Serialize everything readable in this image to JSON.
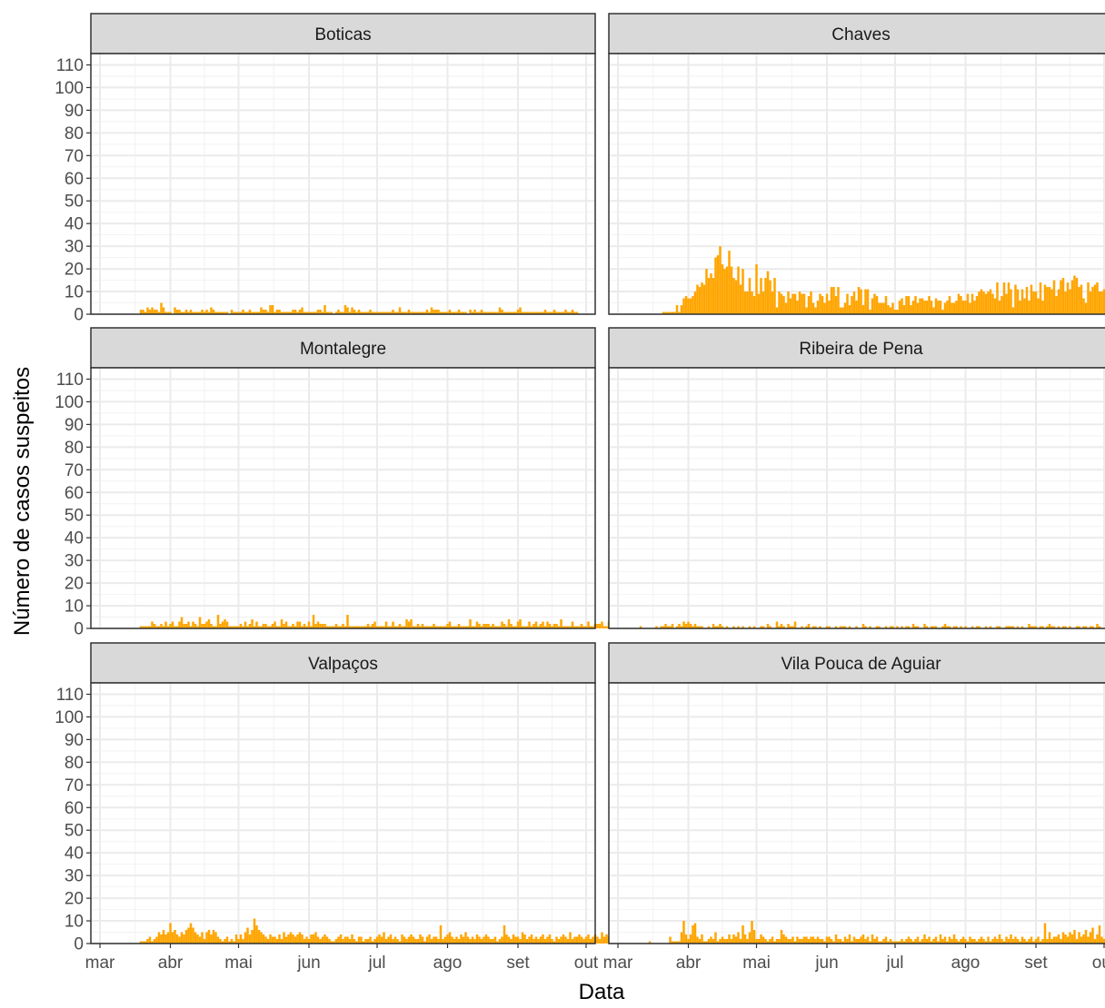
{
  "chart_data": {
    "type": "bar",
    "xlabel": "Data",
    "ylabel": "Número de casos suspeitos",
    "ylim": [
      0,
      115
    ],
    "yticks": [
      0,
      10,
      20,
      30,
      40,
      50,
      60,
      70,
      80,
      90,
      100,
      110
    ],
    "x_date_range": [
      "2020-03-01",
      "2020-10-01"
    ],
    "month_ticks": [
      {
        "label": "mar",
        "date": "2020-03-01"
      },
      {
        "label": "abr",
        "date": "2020-04-01"
      },
      {
        "label": "mai",
        "date": "2020-05-01"
      },
      {
        "label": "jun",
        "date": "2020-06-01"
      },
      {
        "label": "jul",
        "date": "2020-07-01"
      },
      {
        "label": "ago",
        "date": "2020-08-01"
      },
      {
        "label": "set",
        "date": "2020-09-01"
      },
      {
        "label": "out",
        "date": "2020-10-01"
      }
    ],
    "grid": true,
    "bar_color": "#FFA500",
    "panels": [
      {
        "name": "Boticas",
        "start_date": "2020-03-07",
        "values": [
          0,
          0,
          0,
          0,
          0,
          0,
          0,
          0,
          0,
          0,
          0,
          0,
          2,
          2,
          1,
          3,
          2,
          3,
          2,
          2,
          1,
          5,
          3,
          1,
          1,
          1,
          0,
          3,
          2,
          2,
          1,
          1,
          2,
          1,
          2,
          1,
          1,
          1,
          1,
          2,
          1,
          2,
          1,
          3,
          2,
          1,
          1,
          1,
          1,
          1,
          1,
          0,
          2,
          1,
          1,
          1,
          1,
          2,
          1,
          1,
          2,
          1,
          1,
          1,
          1,
          3,
          2,
          2,
          1,
          4,
          4,
          1,
          2,
          2,
          1,
          1,
          1,
          1,
          1,
          2,
          2,
          1,
          2,
          3,
          1,
          1,
          1,
          1,
          1,
          1,
          2,
          2,
          1,
          4,
          1,
          1,
          1,
          0,
          1,
          2,
          1,
          1,
          4,
          3,
          1,
          3,
          2,
          1,
          2,
          1,
          1,
          1,
          1,
          2,
          1,
          1,
          1,
          1,
          1,
          1,
          1,
          1,
          1,
          2,
          1,
          1,
          3,
          1,
          1,
          1,
          2,
          1,
          1,
          1,
          1,
          1,
          1,
          1,
          2,
          1,
          3,
          2,
          2,
          2,
          1,
          1,
          1,
          1,
          2,
          1,
          1,
          1,
          2,
          1,
          1,
          1,
          0,
          2,
          1,
          2,
          1,
          1,
          2,
          1,
          1,
          1,
          1,
          1,
          1,
          1,
          3,
          2,
          1,
          1,
          1,
          1,
          1,
          1,
          2,
          3,
          1,
          1,
          1,
          1,
          1,
          1,
          1,
          1,
          1,
          1,
          2,
          1,
          1,
          1,
          2,
          1,
          1,
          1,
          1,
          2,
          1,
          1,
          2,
          1,
          1
        ]
      },
      {
        "name": "Chaves",
        "start_date": "2020-03-07",
        "values": [
          0,
          0,
          0,
          0,
          0,
          0,
          0,
          0,
          0,
          0,
          0,
          0,
          0,
          0,
          1,
          1,
          1,
          1,
          1,
          1,
          4,
          1,
          4,
          7,
          8,
          7,
          7,
          8,
          10,
          13,
          12,
          14,
          13,
          20,
          16,
          18,
          16,
          25,
          26,
          30,
          22,
          20,
          21,
          28,
          21,
          16,
          15,
          21,
          13,
          20,
          10,
          10,
          16,
          10,
          8,
          22,
          9,
          16,
          10,
          16,
          19,
          15,
          10,
          16,
          3,
          10,
          9,
          8,
          5,
          10,
          7,
          9,
          9,
          6,
          10,
          9,
          9,
          3,
          8,
          10,
          5,
          3,
          6,
          9,
          8,
          5,
          9,
          6,
          12,
          12,
          8,
          12,
          3,
          3,
          5,
          9,
          4,
          8,
          10,
          6,
          12,
          11,
          4,
          11,
          11,
          2,
          7,
          9,
          8,
          5,
          5,
          5,
          8,
          4,
          3,
          5,
          2,
          2,
          6,
          7,
          4,
          8,
          8,
          4,
          6,
          8,
          5,
          7,
          7,
          6,
          6,
          8,
          6,
          3,
          7,
          6,
          6,
          2,
          5,
          6,
          8,
          5,
          5,
          6,
          9,
          8,
          6,
          6,
          9,
          5,
          9,
          6,
          8,
          10,
          11,
          10,
          9,
          10,
          11,
          9,
          7,
          14,
          6,
          8,
          14,
          9,
          14,
          11,
          3,
          13,
          11,
          6,
          11,
          7,
          12,
          6,
          13,
          10,
          10,
          7,
          14,
          6,
          13,
          12,
          12,
          11,
          15,
          8,
          11,
          15,
          16,
          10,
          14,
          11,
          15,
          17,
          16,
          12,
          13,
          7,
          5,
          14,
          10,
          12,
          13,
          14,
          10,
          10,
          11,
          18,
          16,
          17,
          16,
          14,
          12,
          13,
          9,
          11,
          12,
          13,
          7,
          13,
          12,
          12,
          10,
          19,
          13,
          17,
          12,
          14,
          12,
          12,
          14,
          10
        ]
      },
      {
        "name": "Montalegre",
        "start_date": "2020-03-07",
        "values": [
          0,
          0,
          0,
          0,
          0,
          0,
          0,
          0,
          0,
          0,
          0,
          0,
          1,
          1,
          1,
          1,
          1,
          3,
          2,
          1,
          1,
          2,
          1,
          3,
          1,
          2,
          3,
          1,
          1,
          3,
          5,
          2,
          2,
          3,
          1,
          3,
          2,
          1,
          5,
          2,
          2,
          3,
          4,
          2,
          1,
          1,
          6,
          2,
          3,
          4,
          3,
          1,
          1,
          1,
          1,
          1,
          2,
          1,
          3,
          1,
          2,
          4,
          1,
          3,
          1,
          1,
          2,
          2,
          1,
          1,
          2,
          3,
          1,
          1,
          4,
          2,
          3,
          1,
          1,
          2,
          1,
          3,
          3,
          1,
          2,
          1,
          3,
          1,
          6,
          2,
          3,
          2,
          2,
          2,
          1,
          1,
          1,
          1,
          2,
          1,
          1,
          2,
          1,
          6,
          1,
          1,
          1,
          1,
          1,
          1,
          1,
          1,
          2,
          1,
          2,
          3,
          1,
          1,
          1,
          1,
          3,
          1,
          1,
          3,
          1,
          1,
          2,
          1,
          1,
          4,
          3,
          4,
          1,
          1,
          2,
          1,
          2,
          1,
          1,
          1,
          1,
          2,
          1,
          1,
          1,
          1,
          1,
          2,
          3,
          1,
          1,
          1,
          2,
          1,
          1,
          1,
          1,
          4,
          1,
          1,
          3,
          2,
          1,
          2,
          2,
          2,
          1,
          2,
          1,
          1,
          1,
          3,
          2,
          1,
          4,
          2,
          1,
          1,
          3,
          4,
          1,
          1,
          1,
          3,
          1,
          2,
          3,
          1,
          2,
          3,
          1,
          3,
          2,
          1,
          2,
          2,
          1,
          4,
          1,
          1,
          1,
          1,
          3,
          1,
          1,
          1,
          2,
          1,
          1,
          3,
          1,
          1,
          2,
          2,
          2,
          3,
          1,
          1,
          3,
          5,
          1,
          3,
          2,
          1
        ]
      },
      {
        "name": "Ribeira de Pena",
        "start_date": "2020-03-11",
        "values": [
          1,
          0,
          0,
          0,
          0,
          0,
          0,
          1,
          0,
          1,
          1,
          2,
          1,
          1,
          2,
          0,
          1,
          2,
          1,
          3,
          2,
          3,
          2,
          1,
          2,
          1,
          1,
          1,
          0,
          0,
          1,
          0,
          2,
          1,
          1,
          2,
          1,
          0,
          1,
          0,
          0,
          1,
          0,
          1,
          0,
          1,
          0,
          0,
          1,
          0,
          1,
          0,
          0,
          1,
          1,
          0,
          2,
          1,
          0,
          0,
          3,
          1,
          2,
          1,
          0,
          2,
          1,
          1,
          3,
          0,
          0,
          1,
          0,
          1,
          2,
          0,
          1,
          1,
          0,
          1,
          0,
          0,
          1,
          1,
          0,
          0,
          1,
          0,
          1,
          1,
          1,
          0,
          1,
          0,
          0,
          1,
          0,
          0,
          2,
          1,
          0,
          1,
          0,
          0,
          1,
          1,
          0,
          0,
          1,
          0,
          1,
          1,
          0,
          1,
          0,
          1,
          0,
          1,
          1,
          0,
          2,
          1,
          1,
          0,
          0,
          2,
          1,
          0,
          1,
          1,
          1,
          0,
          0,
          1,
          2,
          1,
          1,
          0,
          1,
          1,
          0,
          1,
          0,
          1,
          0,
          0,
          1,
          0,
          1,
          1,
          0,
          0,
          1,
          0,
          1,
          0,
          0,
          1,
          1,
          0,
          0,
          1,
          1,
          1,
          1,
          0,
          1,
          0,
          1,
          0,
          0,
          2,
          1,
          1,
          1,
          0,
          1,
          1,
          0,
          1,
          2,
          1,
          1,
          0,
          1,
          0,
          1,
          1,
          0,
          1,
          0,
          0,
          1,
          1,
          0,
          1,
          1,
          0,
          1,
          1,
          0,
          2,
          1
        ]
      },
      {
        "name": "Valpaços",
        "start_date": "2020-03-07",
        "values": [
          0,
          0,
          0,
          0,
          0,
          0,
          0,
          0,
          0,
          0,
          0,
          0,
          1,
          1,
          1,
          2,
          3,
          1,
          2,
          3,
          5,
          4,
          6,
          4,
          5,
          9,
          5,
          6,
          4,
          3,
          5,
          4,
          6,
          7,
          9,
          7,
          5,
          4,
          3,
          5,
          2,
          5,
          6,
          4,
          6,
          5,
          3,
          2,
          1,
          2,
          3,
          1,
          2,
          1,
          4,
          2,
          4,
          2,
          5,
          7,
          4,
          6,
          11,
          8,
          6,
          5,
          4,
          3,
          2,
          4,
          3,
          3,
          2,
          4,
          2,
          5,
          3,
          4,
          5,
          4,
          3,
          4,
          5,
          4,
          2,
          3,
          2,
          4,
          4,
          5,
          3,
          2,
          3,
          4,
          3,
          2,
          1,
          1,
          2,
          3,
          4,
          2,
          3,
          3,
          2,
          4,
          2,
          1,
          3,
          3,
          1,
          2,
          2,
          3,
          1,
          2,
          3,
          4,
          3,
          5,
          2,
          3,
          4,
          2,
          3,
          2,
          1,
          4,
          3,
          2,
          3,
          4,
          3,
          2,
          2,
          4,
          3,
          1,
          3,
          4,
          2,
          3,
          3,
          2,
          8,
          2,
          3,
          4,
          5,
          3,
          2,
          3,
          2,
          4,
          3,
          5,
          3,
          2,
          3,
          2,
          4,
          3,
          2,
          3,
          4,
          3,
          2,
          2,
          3,
          1,
          2,
          3,
          8,
          4,
          3,
          2,
          4,
          3,
          3,
          2,
          5,
          4,
          2,
          3,
          4,
          2,
          3,
          2,
          3,
          4,
          2,
          3,
          4,
          2,
          1,
          3,
          2,
          3,
          4,
          3,
          2,
          5,
          2,
          3,
          3,
          4,
          3,
          2,
          3,
          4,
          2,
          3,
          4,
          3,
          2,
          5,
          3,
          4,
          3,
          2,
          4,
          5,
          3,
          4,
          2,
          3,
          5,
          4,
          3,
          2,
          5,
          4,
          6,
          2,
          3,
          2,
          5,
          6
        ]
      },
      {
        "name": "Vila Pouca de Aguiar",
        "start_date": "2020-03-11",
        "values": [
          0,
          0,
          0,
          0,
          1,
          0,
          0,
          0,
          0,
          0,
          0,
          0,
          0,
          3,
          1,
          1,
          1,
          1,
          5,
          10,
          4,
          2,
          4,
          8,
          9,
          3,
          2,
          4,
          1,
          1,
          2,
          3,
          2,
          5,
          1,
          2,
          3,
          2,
          2,
          4,
          2,
          4,
          3,
          5,
          2,
          8,
          4,
          2,
          5,
          10,
          6,
          2,
          2,
          4,
          3,
          2,
          1,
          2,
          3,
          1,
          2,
          2,
          6,
          4,
          3,
          2,
          2,
          3,
          1,
          3,
          2,
          2,
          3,
          3,
          2,
          3,
          3,
          2,
          3,
          2,
          2,
          1,
          3,
          3,
          2,
          1,
          4,
          2,
          2,
          1,
          3,
          2,
          4,
          1,
          3,
          2,
          2,
          3,
          4,
          2,
          3,
          1,
          4,
          2,
          3,
          1,
          1,
          2,
          3,
          1,
          2,
          1,
          1,
          1,
          1,
          2,
          1,
          2,
          3,
          2,
          1,
          2,
          3,
          1,
          2,
          4,
          2,
          3,
          1,
          2,
          3,
          1,
          4,
          2,
          3,
          1,
          3,
          2,
          4,
          2,
          1,
          2,
          3,
          2,
          1,
          3,
          2,
          2,
          1,
          2,
          3,
          2,
          1,
          3,
          1,
          2,
          3,
          2,
          4,
          2,
          1,
          3,
          2,
          4,
          2,
          3,
          2,
          1,
          3,
          2,
          1,
          2,
          3,
          1,
          2,
          3,
          1,
          2,
          9,
          2,
          5,
          2,
          3,
          3,
          4,
          2,
          5,
          4,
          3,
          5,
          4,
          6,
          2,
          5,
          3,
          4,
          6,
          3,
          5,
          7,
          2,
          4,
          8,
          3,
          2,
          3,
          5,
          2,
          6,
          4,
          3,
          6,
          3,
          2,
          4,
          2,
          4
        ]
      }
    ]
  }
}
